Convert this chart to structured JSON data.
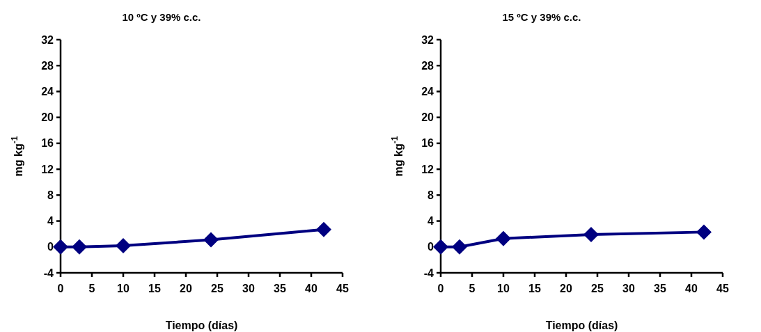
{
  "chart_data": [
    {
      "type": "line",
      "title": "10 ºC y 39% c.c.",
      "xlabel": "Tiempo (días)",
      "ylabel": "mg kg$^{-1}$",
      "x": [
        0,
        3,
        10,
        24,
        42
      ],
      "series": [
        {
          "color": "#000080",
          "values": [
            0,
            0,
            0.2,
            1.1,
            2.7
          ]
        }
      ],
      "xlim": [
        0,
        45
      ],
      "xticks": [
        0,
        5,
        10,
        15,
        20,
        25,
        30,
        35,
        40,
        45
      ],
      "ylim": [
        -4,
        32
      ],
      "yticks": [
        -4,
        0,
        4,
        8,
        12,
        16,
        20,
        24,
        28,
        32
      ],
      "grid": false,
      "marker": "diamond",
      "line_style": "solid"
    },
    {
      "type": "line",
      "title": "15 ºC y 39% c.c.",
      "xlabel": "Tiempo (días)",
      "ylabel": "mg kg$^{-1}$",
      "x": [
        0,
        3,
        10,
        24,
        42
      ],
      "series": [
        {
          "color": "#000080",
          "values": [
            0,
            0,
            1.3,
            1.9,
            2.3
          ]
        }
      ],
      "xlim": [
        0,
        45
      ],
      "xticks": [
        0,
        5,
        10,
        15,
        20,
        25,
        30,
        35,
        40,
        45
      ],
      "ylim": [
        -4,
        32
      ],
      "yticks": [
        -4,
        0,
        4,
        8,
        12,
        16,
        20,
        24,
        28,
        32
      ],
      "grid": false,
      "marker": "diamond",
      "line_style": "solid"
    }
  ]
}
